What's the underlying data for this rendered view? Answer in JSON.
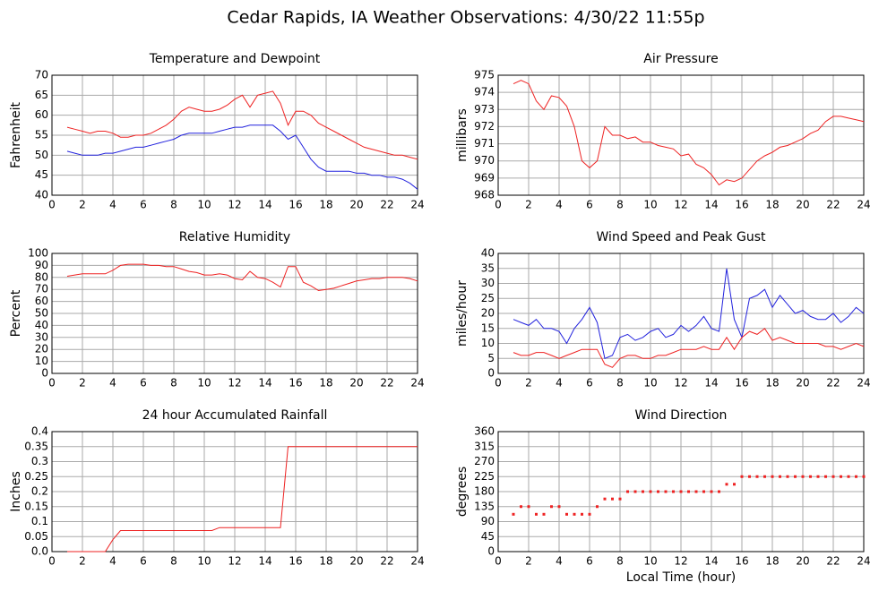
{
  "title": "Cedar Rapids, IA Weather Observations: 4/30/22 11:55p",
  "chart_data": [
    {
      "type": "line",
      "title": "Temperature and Dewpoint",
      "y_label": "Fahrenheit",
      "grid": true,
      "x": [
        1,
        1.5,
        2,
        2.5,
        3,
        3.5,
        4,
        4.5,
        5,
        5.5,
        6,
        6.5,
        7,
        7.5,
        8,
        8.5,
        9,
        9.5,
        10,
        10.5,
        11,
        11.5,
        12,
        12.5,
        13,
        13.5,
        14,
        14.5,
        15,
        15.5,
        16,
        16.5,
        17,
        17.5,
        18,
        18.5,
        19,
        19.5,
        20,
        20.5,
        21,
        21.5,
        22,
        22.5,
        23,
        23.5,
        24
      ],
      "xlim": [
        0,
        24
      ],
      "xticks": [
        0,
        2,
        4,
        6,
        8,
        10,
        12,
        14,
        16,
        18,
        20,
        22,
        24
      ],
      "ylim": [
        40,
        70
      ],
      "yticks": [
        40,
        45,
        50,
        55,
        60,
        65,
        70
      ],
      "series": [
        {
          "color": "#ee2222",
          "values": [
            57,
            56.5,
            56,
            55.5,
            56,
            56,
            55.5,
            54.5,
            54.5,
            55,
            55,
            55.5,
            56.5,
            57.5,
            59,
            61,
            62,
            61.5,
            61,
            61,
            61.5,
            62.5,
            64,
            65,
            62,
            65,
            65.5,
            66,
            63,
            57.5,
            61,
            61,
            60,
            58,
            57,
            56,
            55,
            54,
            53,
            52,
            51.5,
            51,
            50.5,
            50,
            50,
            49.5,
            49
          ]
        },
        {
          "color": "#2222dd",
          "values": [
            51,
            50.5,
            50,
            50,
            50,
            50.5,
            50.5,
            51,
            51.5,
            52,
            52,
            52.5,
            53,
            53.5,
            54,
            55,
            55.5,
            55.5,
            55.5,
            55.5,
            56,
            56.5,
            57,
            57,
            57.5,
            57.5,
            57.5,
            57.5,
            56,
            54,
            55,
            52,
            49,
            47,
            46,
            46,
            46,
            46,
            45.5,
            45.5,
            45,
            45,
            44.5,
            44.5,
            44,
            43,
            41.5
          ]
        }
      ]
    },
    {
      "type": "line",
      "title": "Air Pressure",
      "y_label": "millibars",
      "grid": true,
      "x": [
        1,
        1.5,
        2,
        2.5,
        3,
        3.5,
        4,
        4.5,
        5,
        5.5,
        6,
        6.5,
        7,
        7.5,
        8,
        8.5,
        9,
        9.5,
        10,
        10.5,
        11,
        11.5,
        12,
        12.5,
        13,
        13.5,
        14,
        14.5,
        15,
        15.5,
        16,
        16.5,
        17,
        17.5,
        18,
        18.5,
        19,
        19.5,
        20,
        20.5,
        21,
        21.5,
        22,
        22.5,
        23,
        23.5,
        24
      ],
      "xlim": [
        0,
        24
      ],
      "xticks": [
        0,
        2,
        4,
        6,
        8,
        10,
        12,
        14,
        16,
        18,
        20,
        22,
        24
      ],
      "ylim": [
        968,
        975
      ],
      "yticks": [
        968,
        969,
        970,
        971,
        972,
        973,
        974,
        975
      ],
      "series": [
        {
          "color": "#ee2222",
          "values": [
            974.5,
            974.7,
            974.5,
            973.5,
            973,
            973.8,
            973.7,
            973.2,
            972,
            970,
            969.6,
            970,
            972,
            971.5,
            971.5,
            971.3,
            971.4,
            971.1,
            971.1,
            970.9,
            970.8,
            970.7,
            970.3,
            970.4,
            969.8,
            969.6,
            969.2,
            968.6,
            968.9,
            968.8,
            969,
            969.5,
            970,
            970.3,
            970.5,
            970.8,
            970.9,
            971.1,
            971.3,
            971.6,
            971.8,
            972.3,
            972.6,
            972.6,
            972.5,
            972.4,
            972.3
          ]
        }
      ]
    },
    {
      "type": "line",
      "title": "Relative Humidity",
      "y_label": "Percent",
      "grid": true,
      "x": [
        1,
        1.5,
        2,
        2.5,
        3,
        3.5,
        4,
        4.5,
        5,
        5.5,
        6,
        6.5,
        7,
        7.5,
        8,
        8.5,
        9,
        9.5,
        10,
        10.5,
        11,
        11.5,
        12,
        12.5,
        13,
        13.5,
        14,
        14.5,
        15,
        15.5,
        16,
        16.5,
        17,
        17.5,
        18,
        18.5,
        19,
        19.5,
        20,
        20.5,
        21,
        21.5,
        22,
        22.5,
        23,
        23.5,
        24
      ],
      "xlim": [
        0,
        24
      ],
      "xticks": [
        0,
        2,
        4,
        6,
        8,
        10,
        12,
        14,
        16,
        18,
        20,
        22,
        24
      ],
      "ylim": [
        0,
        100
      ],
      "yticks": [
        0,
        10,
        20,
        30,
        40,
        50,
        60,
        70,
        80,
        90,
        100
      ],
      "series": [
        {
          "color": "#ee2222",
          "values": [
            81,
            82,
            83,
            83,
            83,
            83,
            86,
            90,
            91,
            91,
            91,
            90,
            90,
            89,
            89,
            87,
            85,
            84,
            82,
            82,
            83,
            82,
            79,
            78,
            85,
            80,
            79,
            76,
            72,
            89,
            89,
            76,
            73,
            69,
            70,
            71,
            73,
            75,
            77,
            78,
            79,
            79,
            80,
            80,
            80,
            79,
            77
          ]
        }
      ]
    },
    {
      "type": "line",
      "title": "Wind Speed and Peak Gust",
      "y_label": "miles/hour",
      "grid": true,
      "x": [
        1,
        1.5,
        2,
        2.5,
        3,
        3.5,
        4,
        4.5,
        5,
        5.5,
        6,
        6.5,
        7,
        7.5,
        8,
        8.5,
        9,
        9.5,
        10,
        10.5,
        11,
        11.5,
        12,
        12.5,
        13,
        13.5,
        14,
        14.5,
        15,
        15.5,
        16,
        16.5,
        17,
        17.5,
        18,
        18.5,
        19,
        19.5,
        20,
        20.5,
        21,
        21.5,
        22,
        22.5,
        23,
        23.5,
        24
      ],
      "xlim": [
        0,
        24
      ],
      "xticks": [
        0,
        2,
        4,
        6,
        8,
        10,
        12,
        14,
        16,
        18,
        20,
        22,
        24
      ],
      "ylim": [
        0,
        40
      ],
      "yticks": [
        0,
        5,
        10,
        15,
        20,
        25,
        30,
        35,
        40
      ],
      "series": [
        {
          "color": "#2222dd",
          "values": [
            18,
            17,
            16,
            18,
            15,
            15,
            14,
            10,
            15,
            18,
            22,
            17,
            5,
            6,
            12,
            13,
            11,
            12,
            14,
            15,
            12,
            13,
            16,
            14,
            16,
            19,
            15,
            14,
            35,
            18,
            12,
            25,
            26,
            28,
            22,
            26,
            23,
            20,
            21,
            19,
            18,
            18,
            20,
            17,
            19,
            22,
            20
          ]
        },
        {
          "color": "#ee2222",
          "values": [
            7,
            6,
            6,
            7,
            7,
            6,
            5,
            6,
            7,
            8,
            8,
            8,
            3,
            2,
            5,
            6,
            6,
            5,
            5,
            6,
            6,
            7,
            8,
            8,
            8,
            9,
            8,
            8,
            12,
            8,
            12,
            14,
            13,
            15,
            11,
            12,
            11,
            10,
            10,
            10,
            10,
            9,
            9,
            8,
            9,
            10,
            9
          ]
        }
      ]
    },
    {
      "type": "line",
      "title": "24 hour Accumulated Rainfall",
      "y_label": "Inches",
      "grid": true,
      "x": [
        1,
        1.5,
        2,
        2.5,
        3,
        3.5,
        4,
        4.5,
        5,
        5.5,
        6,
        6.5,
        7,
        7.5,
        8,
        8.5,
        9,
        9.5,
        10,
        10.5,
        11,
        11.5,
        12,
        12.5,
        13,
        13.5,
        14,
        14.5,
        15,
        15.5,
        16,
        16.5,
        17,
        17.5,
        18,
        18.5,
        19,
        19.5,
        20,
        20.5,
        21,
        21.5,
        22,
        22.5,
        23,
        23.5,
        24
      ],
      "xlim": [
        0,
        24
      ],
      "xticks": [
        0,
        2,
        4,
        6,
        8,
        10,
        12,
        14,
        16,
        18,
        20,
        22,
        24
      ],
      "ylim": [
        0,
        0.4
      ],
      "yticks": [
        {
          "value": 0,
          "label": "0.0"
        },
        0.05,
        0.1,
        0.15,
        0.2,
        0.25,
        0.3,
        0.35,
        0.4
      ],
      "series": [
        {
          "color": "#ee2222",
          "values": [
            0,
            0,
            0,
            0,
            0,
            0,
            0.04,
            0.07,
            0.07,
            0.07,
            0.07,
            0.07,
            0.07,
            0.07,
            0.07,
            0.07,
            0.07,
            0.07,
            0.07,
            0.07,
            0.08,
            0.08,
            0.08,
            0.08,
            0.08,
            0.08,
            0.08,
            0.08,
            0.08,
            0.35,
            0.35,
            0.35,
            0.35,
            0.35,
            0.35,
            0.35,
            0.35,
            0.35,
            0.35,
            0.35,
            0.35,
            0.35,
            0.35,
            0.35,
            0.35,
            0.35,
            0.35
          ]
        }
      ]
    },
    {
      "type": "scatter",
      "title": "Wind Direction",
      "y_label": "degrees",
      "x_label": "Local Time (hour)",
      "grid": true,
      "x": [
        1,
        1.5,
        2,
        2.5,
        3,
        3.5,
        4,
        4.5,
        5,
        5.5,
        6,
        6.5,
        7,
        7.5,
        8,
        8.5,
        9,
        9.5,
        10,
        10.5,
        11,
        11.5,
        12,
        12.5,
        13,
        13.5,
        14,
        14.5,
        15,
        15.5,
        16,
        16.5,
        17,
        17.5,
        18,
        18.5,
        19,
        19.5,
        20,
        20.5,
        21,
        21.5,
        22,
        22.5,
        23,
        23.5,
        24
      ],
      "xlim": [
        0,
        24
      ],
      "xticks": [
        0,
        2,
        4,
        6,
        8,
        10,
        12,
        14,
        16,
        18,
        20,
        22,
        24
      ],
      "ylim": [
        0,
        360
      ],
      "yticks": [
        0,
        45,
        90,
        135,
        180,
        225,
        270,
        315,
        360
      ],
      "series": [
        {
          "color": "#ee2222",
          "values": [
            112,
            135,
            135,
            112,
            112,
            135,
            135,
            112,
            112,
            112,
            112,
            135,
            158,
            158,
            158,
            180,
            180,
            180,
            180,
            180,
            180,
            180,
            180,
            180,
            180,
            180,
            180,
            180,
            202,
            202,
            225,
            225,
            225,
            225,
            225,
            225,
            225,
            225,
            225,
            225,
            225,
            225,
            225,
            225,
            225,
            225,
            225
          ]
        }
      ]
    }
  ]
}
